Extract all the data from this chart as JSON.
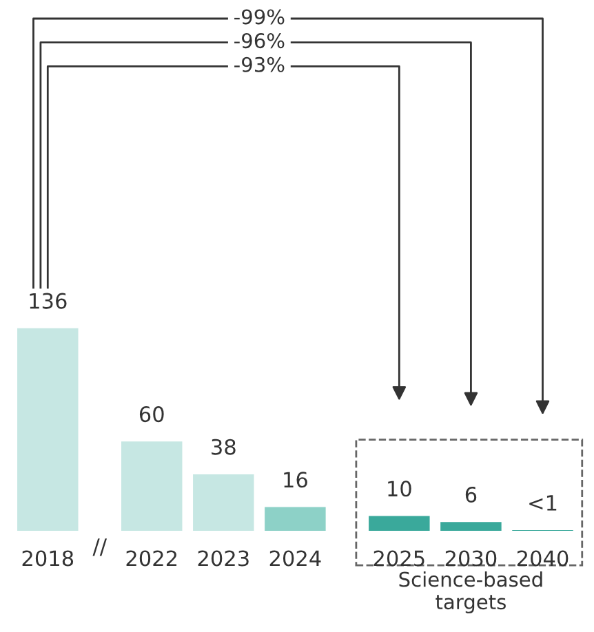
{
  "chart_data": {
    "type": "bar",
    "categories": [
      "2018",
      "2022",
      "2023",
      "2024",
      "2025",
      "2030",
      "2040"
    ],
    "values": [
      136,
      60,
      38,
      16,
      10,
      6,
      0.5
    ],
    "value_labels": [
      "136",
      "60",
      "38",
      "16",
      "10",
      "6",
      "<1"
    ],
    "colors": [
      "#c6e7e3",
      "#c6e7e3",
      "#c6e7e3",
      "#8dd1c7",
      "#3aa99b",
      "#3aa99b",
      "#3aa99b"
    ],
    "annotations": [
      "-99%",
      "-96%",
      "-93%",
      "//",
      "Science-based targets"
    ],
    "grid": false,
    "legend": false
  }
}
